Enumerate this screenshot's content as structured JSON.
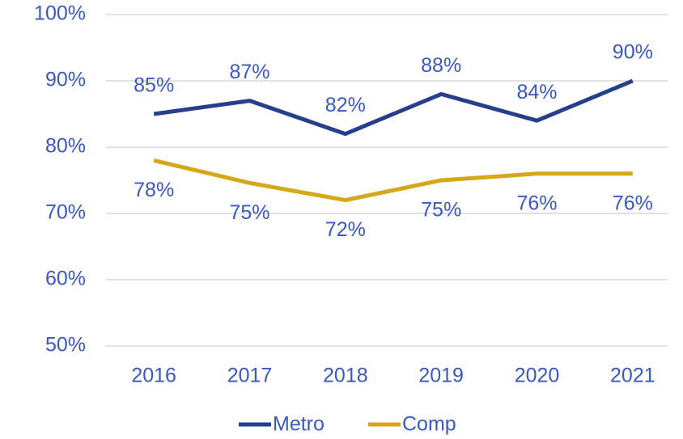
{
  "chart_data": {
    "type": "line",
    "categories": [
      "2016",
      "2017",
      "2018",
      "2019",
      "2020",
      "2021"
    ],
    "series": [
      {
        "name": "Metro",
        "color": "#263f8c",
        "values": [
          85,
          87,
          82,
          88,
          84,
          90
        ],
        "value_labels": [
          "85%",
          "87%",
          "82%",
          "88%",
          "84%",
          "90%"
        ]
      },
      {
        "name": "Comp",
        "color": "#d5a719",
        "values": [
          78,
          74.6,
          72,
          75,
          76,
          76
        ],
        "value_labels": [
          "78%",
          "75%",
          "72%",
          "75%",
          "76%",
          "76%"
        ]
      }
    ],
    "ylim": [
      50,
      100
    ],
    "yticks": [
      {
        "value": 50,
        "label": "50%"
      },
      {
        "value": 60,
        "label": "60%"
      },
      {
        "value": 70,
        "label": "70%"
      },
      {
        "value": 80,
        "label": "80%"
      },
      {
        "value": 90,
        "label": "90%"
      },
      {
        "value": 100,
        "label": "100%"
      }
    ],
    "grid": true,
    "legend": "bottom"
  }
}
